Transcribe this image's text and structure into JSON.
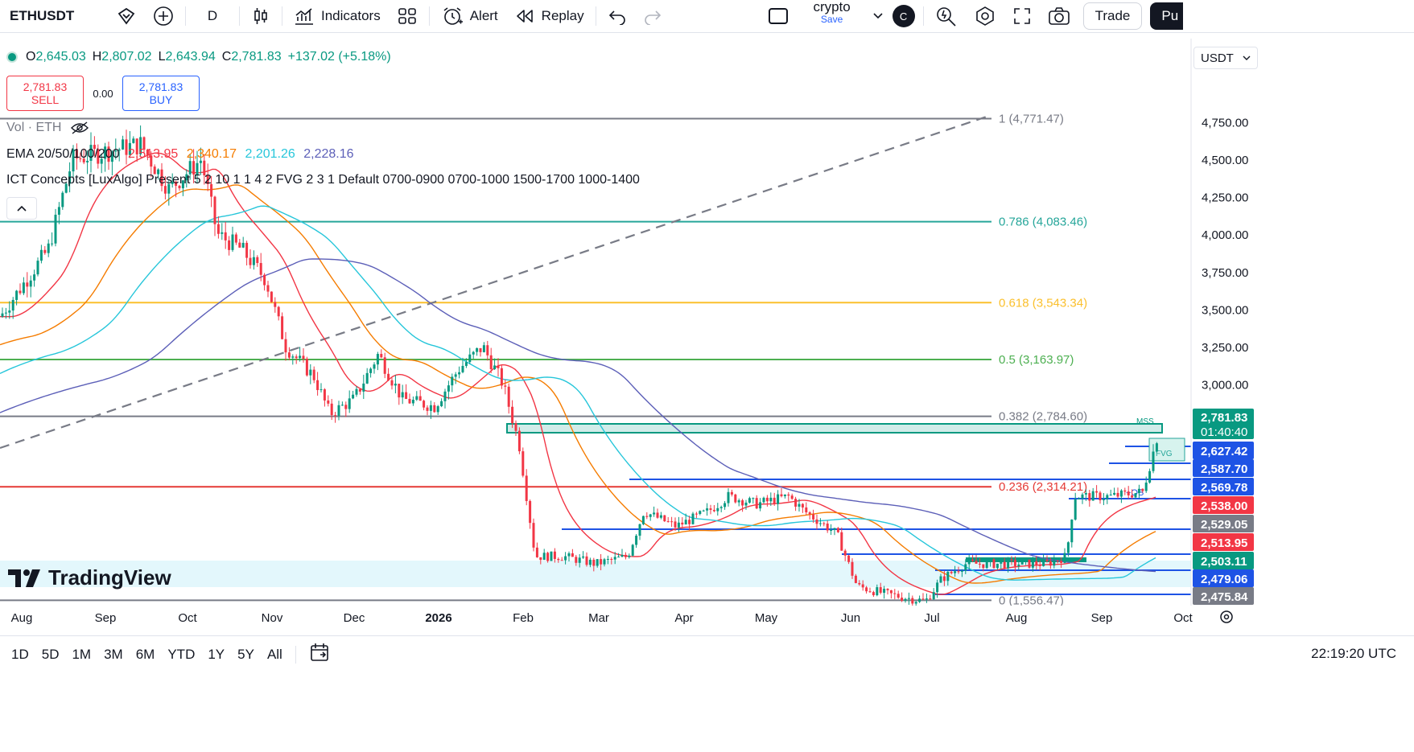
{
  "toolbar": {
    "symbol": "ETHUSDT",
    "interval": "D",
    "indicators": "Indicators",
    "alert": "Alert",
    "replay": "Replay",
    "layout_name": "crypto",
    "layout_save": "Save",
    "avatar_letter": "C",
    "trade": "Trade",
    "publish": "Pu"
  },
  "legend": {
    "o_label": "O",
    "o_val": "2,645.03",
    "h_label": "H",
    "h_val": "2,807.02",
    "l_label": "L",
    "l_val": "2,643.94",
    "c_label": "C",
    "c_val": "2,781.83",
    "change": "+137.02 (+5.18%)",
    "sell_price": "2,781.83",
    "sell_label": "SELL",
    "spread": "0.00",
    "buy_price": "2,781.83",
    "buy_label": "BUY",
    "vol": "Vol · ETH",
    "ema_name": "EMA 20/50/100/200",
    "ema20": "2,513.95",
    "ema50": "2,340.17",
    "ema100": "2,201.26",
    "ema200": "2,228.16",
    "ict": "ICT Concepts [LuxAlgo] Present 5 2 10 1 1 4 2 FVG 2 3 1 Default 0700-0900 0700-1000 1500-1700 1000-1400"
  },
  "currency": "USDT",
  "brand": "TradingView",
  "colors": {
    "up": "#089981",
    "down": "#f23645",
    "ema20": "#f23645",
    "ema50": "#f57c00",
    "ema100": "#26c6da",
    "ema200": "#5c5fb8",
    "fib_786": "#26a69a",
    "fib_618": "#fbc02d",
    "fib_5": "#4caf50",
    "fib_382": "#787b86",
    "fib_236": "#e53935",
    "ob": "#1e53e5"
  },
  "fib_labels": [
    {
      "text": "1 (4,771.47)",
      "price": 4771.47,
      "color": "#787b86"
    },
    {
      "text": "0.786 (4,083.46)",
      "price": 4083.46,
      "color": "#26a69a"
    },
    {
      "text": "0.618 (3,543.34)",
      "price": 3543.34,
      "color": "#fbc02d"
    },
    {
      "text": "0.5 (3,163.97)",
      "price": 3163.97,
      "color": "#4caf50"
    },
    {
      "text": "0.382 (2,784.60)",
      "price": 2784.6,
      "color": "#787b86"
    },
    {
      "text": "0.236 (2,314.21)",
      "price": 2314.21,
      "color": "#e53935"
    },
    {
      "text": "0 (1,556.47)",
      "price": 1556.47,
      "color": "#787b86"
    }
  ],
  "price_axis": {
    "ticks": [
      "4,750.00",
      "4,500.00",
      "4,250.00",
      "4,000.00",
      "3,750.00",
      "3,500.00",
      "3,250.00",
      "3,000.00"
    ],
    "tick_values": [
      4750,
      4500,
      4250,
      4000,
      3750,
      3500,
      3250,
      3000
    ]
  },
  "price_tags": [
    {
      "text": "2,781.83",
      "sub": "01:40:40",
      "bg": "#089981"
    },
    {
      "text": "2,627.42",
      "bg": "#1e53e5"
    },
    {
      "text": "2,587.70",
      "bg": "#1e53e5"
    },
    {
      "text": "2,569.78",
      "bg": "#1e53e5"
    },
    {
      "text": "2,538.00",
      "bg": "#f23645"
    },
    {
      "text": "2,529.05",
      "bg": "#787b86"
    },
    {
      "text": "2,513.95",
      "bg": "#f23645"
    },
    {
      "text": "2,503.11",
      "bg": "#089981"
    },
    {
      "text": "2,479.06",
      "bg": "#1e53e5"
    },
    {
      "text": "2,475.84",
      "bg": "#787b86"
    }
  ],
  "time_axis": [
    "Aug",
    "Sep",
    "Oct",
    "Nov",
    "Dec",
    "2026",
    "Feb",
    "Mar",
    "Apr",
    "May",
    "Jun",
    "Jul",
    "Aug",
    "Sep",
    "Oct"
  ],
  "chart_labels": {
    "mss": "MSS",
    "fvg": "FVG",
    "ob": "+OB"
  },
  "bottom": {
    "ranges": [
      "1D",
      "5D",
      "1M",
      "3M",
      "6M",
      "YTD",
      "1Y",
      "5Y",
      "All"
    ],
    "clock": "22:19:20 UTC"
  },
  "chart_data": {
    "type": "candlestick",
    "symbol": "ETHUSDT",
    "interval": "D",
    "last": {
      "open": 2645.03,
      "high": 2807.02,
      "low": 2643.94,
      "close": 2781.83
    },
    "fibonacci": [
      {
        "level": 1,
        "price": 4771.47
      },
      {
        "level": 0.786,
        "price": 4083.46
      },
      {
        "level": 0.618,
        "price": 3543.34
      },
      {
        "level": 0.5,
        "price": 3163.97
      },
      {
        "level": 0.382,
        "price": 2784.6
      },
      {
        "level": 0.236,
        "price": 2314.21
      },
      {
        "level": 0,
        "price": 1556.47
      }
    ],
    "ema": {
      "ema20": 2513.95,
      "ema50": 2340.17,
      "ema100": 2201.26,
      "ema200": 2228.16
    },
    "x_labels": [
      "Aug",
      "Sep",
      "Oct",
      "Nov",
      "Dec",
      "2026",
      "Feb",
      "Mar",
      "Apr",
      "May",
      "Jun",
      "Jul",
      "Aug",
      "Sep",
      "Oct"
    ],
    "monthly_approx_close": [
      3600,
      4300,
      4200,
      3900,
      3000,
      2980,
      3200,
      2150,
      2250,
      2350,
      2450,
      1850,
      2200,
      2350,
      2600,
      2780
    ]
  }
}
